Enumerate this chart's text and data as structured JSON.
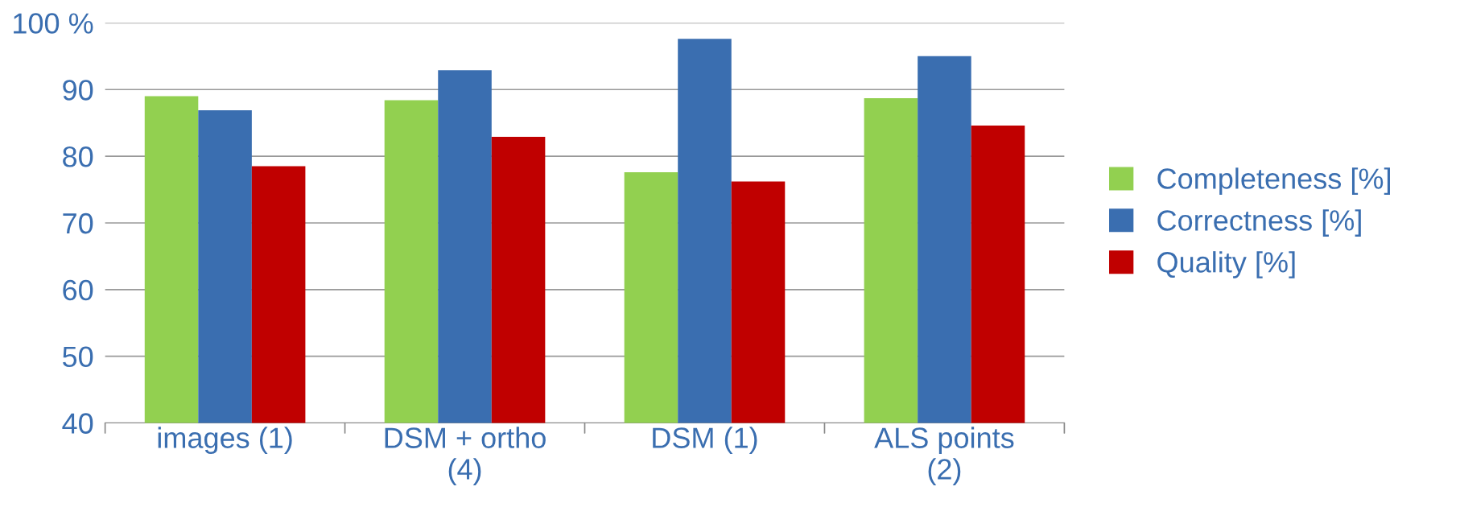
{
  "chart_data": {
    "type": "bar",
    "categories": [
      "images (1)",
      "DSM + ortho\n(4)",
      "DSM (1)",
      "ALS points\n(2)"
    ],
    "series": [
      {
        "name": "Completeness [%]",
        "color": "#92d050",
        "values": [
          89.0,
          88.4,
          77.6,
          88.7
        ]
      },
      {
        "name": "Correctness [%]",
        "color": "#3a6eb0",
        "values": [
          86.9,
          92.9,
          97.6,
          95.0
        ]
      },
      {
        "name": "Quality [%]",
        "color": "#c00000",
        "values": [
          78.5,
          82.9,
          76.2,
          84.6
        ]
      }
    ],
    "ylim": [
      40,
      100
    ],
    "yticks": [
      40,
      50,
      60,
      70,
      80,
      {
        "value": 100,
        "label": "100 %"
      },
      90
    ],
    "grid": "y",
    "legend": "right"
  }
}
